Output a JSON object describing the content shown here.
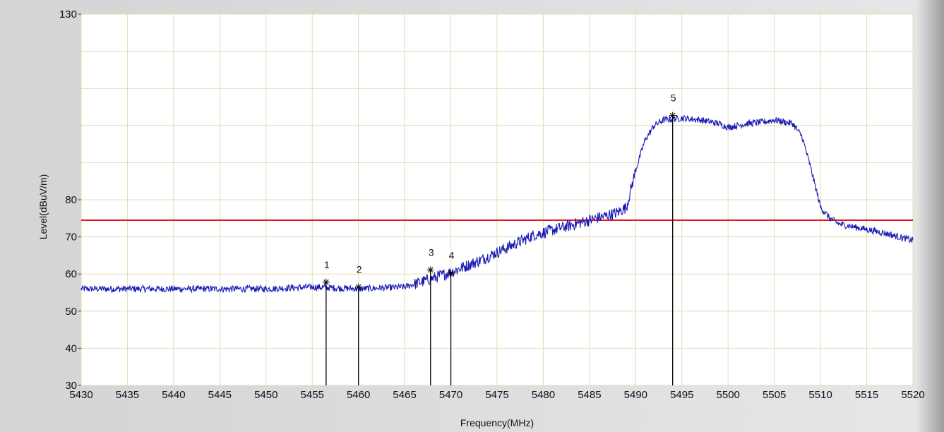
{
  "chart_data": {
    "type": "line",
    "xlabel": "Frequency(MHz)",
    "ylabel": "Level(dBuV/m)",
    "xlim": [
      5430,
      5520
    ],
    "ylim": [
      30,
      130
    ],
    "x_ticks": [
      "5430",
      "5435",
      "5440",
      "5445",
      "5450",
      "5455",
      "5460",
      "5465",
      "5470",
      "5475",
      "5480",
      "5485",
      "5490",
      "5495",
      "5500",
      "5505",
      "5510",
      "5515",
      "5520"
    ],
    "y_ticks": [
      "30",
      "40",
      "50",
      "60",
      "70",
      "80",
      "130"
    ],
    "grid": true,
    "limit_line": {
      "value": 74.5,
      "color": "#e31a1c"
    },
    "series": [
      {
        "color": "#1a1ab4",
        "x": [
          5430,
          5440,
          5450,
          5455,
          5460,
          5465,
          5467,
          5470,
          5473,
          5476,
          5479,
          5482,
          5485,
          5488,
          5489,
          5490,
          5491,
          5492,
          5493,
          5495,
          5497,
          5499,
          5500,
          5502,
          5504,
          5505,
          5507,
          5508,
          5509,
          5510,
          5511,
          5512,
          5514,
          5517,
          5520
        ],
        "y": [
          56,
          56,
          56,
          56.5,
          56,
          56.5,
          58,
          60.5,
          63.5,
          67,
          70.5,
          72.5,
          74.5,
          76.5,
          78,
          88,
          96,
          100,
          101.5,
          102,
          101.5,
          100.5,
          99.5,
          100.5,
          101,
          101.5,
          100.5,
          97,
          88,
          78,
          75,
          73.5,
          72.5,
          71,
          69
        ]
      }
    ],
    "markers": [
      {
        "label": "1",
        "x": 5456.5,
        "y": 57.8
      },
      {
        "label": "2",
        "x": 5460.0,
        "y": 56.5
      },
      {
        "label": "3",
        "x": 5467.8,
        "y": 61.1
      },
      {
        "label": "4",
        "x": 5470.0,
        "y": 60.3
      },
      {
        "label": "5",
        "x": 5494.0,
        "y": 102.7
      }
    ]
  },
  "colors": {
    "background": "#dcdcdc",
    "grid": "#e2dcb4",
    "trace": "#1a1ab4",
    "limit": "#e31a1c"
  }
}
